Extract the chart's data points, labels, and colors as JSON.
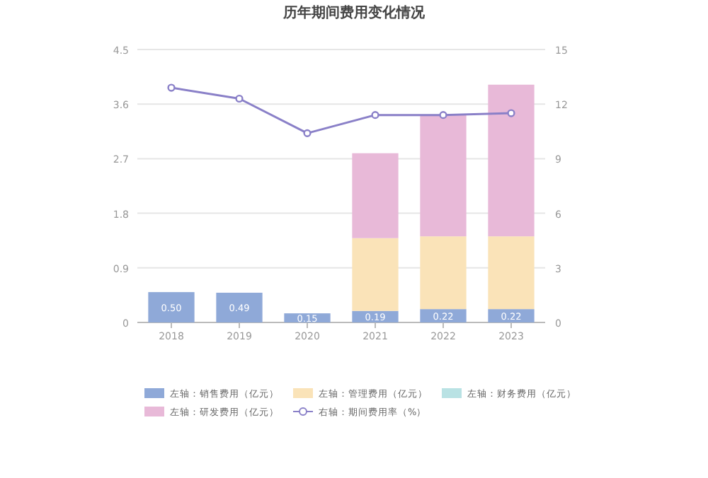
{
  "chart_data": {
    "type": "bar",
    "title": "历年期间费用变化情况",
    "stacked": true,
    "categories": [
      "2018",
      "2019",
      "2020",
      "2021",
      "2022",
      "2023"
    ],
    "series": [
      {
        "name": "左轴：销售费用（亿元）",
        "color": "#8fa9d8",
        "values": [
          0.5,
          0.49,
          0.15,
          0.19,
          0.22,
          0.22
        ],
        "value_labels": [
          "0.50",
          "0.49",
          "0.15",
          "0.19",
          "0.22",
          "0.22"
        ]
      },
      {
        "name": "左轴：管理费用（亿元）",
        "color": "#fae3b8",
        "values": [
          null,
          null,
          null,
          1.2,
          1.2,
          1.2
        ]
      },
      {
        "name": "左轴：财务费用（亿元）",
        "color": "#b9e2e4",
        "values": [
          null,
          null,
          null,
          null,
          null,
          null
        ]
      },
      {
        "name": "左轴：研发费用（亿元）",
        "color": "#e8b9d8",
        "values": [
          null,
          null,
          null,
          1.4,
          2.0,
          2.5
        ]
      },
      {
        "name": "右轴：期间费用率（%）",
        "color": "#8a80c8",
        "type": "line",
        "axis": "y2",
        "marker": "circle",
        "values": [
          12.9,
          12.3,
          10.4,
          11.4,
          11.4,
          11.5
        ]
      }
    ],
    "ylim": [
      0,
      4.5
    ],
    "yticks": [
      0,
      0.9,
      1.8,
      2.7,
      3.6,
      4.5
    ],
    "y2lim": [
      0,
      15
    ],
    "y2ticks": [
      0,
      3,
      6,
      9,
      12,
      15
    ],
    "grid": "y",
    "legend": "bottom"
  }
}
